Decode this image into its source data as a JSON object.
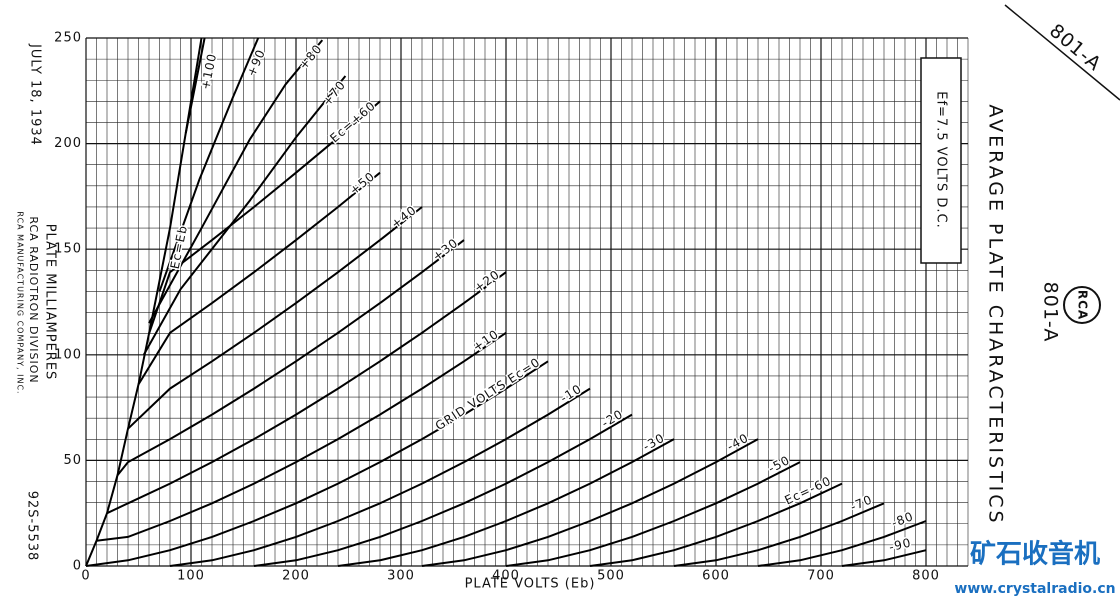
{
  "chart_data": {
    "type": "line",
    "title": "AVERAGE PLATE CHARACTERISTICS",
    "tube": "801-A",
    "corner_label": "801-A",
    "note": "Ef=7.5 VOLTS D.C.",
    "date": "JULY 18, 1934",
    "maker": "RCA RADIOTRON DIVISION",
    "company": "RCA MANUFACTURING COMPANY, INC.",
    "drawing_number": "92S-5538",
    "logo": "RCA",
    "watermark": "矿石收音机",
    "watermark_url": "www.crystalradio.cn",
    "x_label": "PLATE VOLTS (Eb)",
    "y_label": "PLATE MILLIAMPERES",
    "xlim": [
      0,
      840
    ],
    "ylim": [
      0,
      250
    ],
    "xticks": [
      0,
      100,
      200,
      300,
      400,
      500,
      600,
      700,
      800
    ],
    "yticks": [
      0,
      50,
      100,
      150,
      200,
      250
    ],
    "grid": true,
    "minor_grid": 10,
    "color": "#000000",
    "series": [
      {
        "name": "Ec=Eb",
        "x": [
          0,
          10,
          20,
          30,
          40,
          50,
          60,
          80,
          100,
          110
        ],
        "values": [
          0,
          12,
          25,
          43,
          65,
          86,
          110,
          160,
          220,
          250
        ]
      },
      {
        "name": "+100",
        "x": [
          95,
          105,
          113
        ],
        "values": [
          205,
          230,
          250
        ]
      },
      {
        "name": "+90",
        "x": [
          70,
          108,
          140,
          164
        ],
        "values": [
          130,
          183,
          222,
          250
        ]
      },
      {
        "name": "+80",
        "x": [
          60,
          109,
          156,
          190,
          225
        ],
        "values": [
          115,
          159,
          202,
          228,
          249
        ]
      },
      {
        "name": "+70",
        "x": [
          55,
          90,
          156,
          200,
          247
        ],
        "values": [
          100,
          131,
          173,
          203,
          232
        ]
      },
      {
        "name": "Ec=+60",
        "x": [
          60,
          80,
          120,
          160,
          200,
          240,
          280
        ],
        "values": [
          110,
          139.1,
          154.3,
          170,
          186.2,
          202.8,
          220
        ]
      },
      {
        "name": "+50",
        "x": [
          50,
          80,
          120,
          160,
          200,
          240,
          280
        ],
        "values": [
          86,
          110.4,
          124.5,
          139.1,
          154.3,
          170,
          186.2
        ]
      },
      {
        "name": "+40",
        "x": [
          40,
          80,
          120,
          160,
          200,
          240,
          280,
          320
        ],
        "values": [
          65,
          84,
          96.9,
          110.4,
          124.5,
          139.1,
          154.3,
          170
        ]
      },
      {
        "name": "+30",
        "x": [
          30,
          40,
          80,
          120,
          160,
          200,
          240,
          280,
          320,
          360
        ],
        "values": [
          43,
          49.2,
          60.1,
          71.7,
          84,
          96.9,
          110.4,
          124.5,
          139.1,
          154.3
        ]
      },
      {
        "name": "+20",
        "x": [
          20,
          40,
          80,
          120,
          160,
          200,
          240,
          280,
          320,
          360,
          400
        ],
        "values": [
          25,
          29.7,
          39,
          49.2,
          60.1,
          71.7,
          84,
          96.9,
          110.4,
          124.5,
          139.1
        ]
      },
      {
        "name": "+10",
        "x": [
          10,
          40,
          80,
          120,
          160,
          200,
          240,
          280,
          320,
          360,
          400
        ],
        "values": [
          12,
          13.8,
          21.3,
          29.7,
          39,
          49.2,
          60.1,
          71.7,
          84,
          96.9,
          110.4
        ]
      },
      {
        "name": "GRID VOLTS Ec=0",
        "x": [
          0,
          40,
          80,
          120,
          160,
          200,
          240,
          280,
          320,
          360,
          400,
          440
        ],
        "values": [
          0,
          2.7,
          7.5,
          13.8,
          21.3,
          29.7,
          39,
          49.2,
          60.1,
          71.7,
          84,
          96.9
        ]
      },
      {
        "name": "-10",
        "x": [
          80,
          120,
          160,
          200,
          240,
          280,
          320,
          360,
          400,
          440,
          480
        ],
        "values": [
          0,
          2.7,
          7.5,
          13.8,
          21.3,
          29.7,
          39,
          49.2,
          60.1,
          71.7,
          84
        ]
      },
      {
        "name": "-20",
        "x": [
          160,
          200,
          240,
          280,
          320,
          360,
          400,
          440,
          480,
          520
        ],
        "values": [
          0,
          2.7,
          7.5,
          13.8,
          21.3,
          29.7,
          39,
          49.2,
          60.1,
          71.7
        ]
      },
      {
        "name": "-30",
        "x": [
          240,
          280,
          320,
          360,
          400,
          440,
          480,
          520,
          560
        ],
        "values": [
          0,
          2.7,
          7.5,
          13.8,
          21.3,
          29.7,
          39,
          49.2,
          60.1
        ]
      },
      {
        "name": "-40",
        "x": [
          320,
          360,
          400,
          440,
          480,
          520,
          560,
          600,
          640
        ],
        "values": [
          0,
          2.7,
          7.5,
          13.8,
          21.3,
          29.7,
          39,
          49.2,
          60.1
        ]
      },
      {
        "name": "-50",
        "x": [
          400,
          440,
          480,
          520,
          560,
          600,
          640,
          680
        ],
        "values": [
          0,
          2.7,
          7.5,
          13.8,
          21.3,
          29.7,
          39,
          49.2
        ]
      },
      {
        "name": "Ec=-60",
        "x": [
          480,
          520,
          560,
          600,
          640,
          680,
          720
        ],
        "values": [
          0,
          2.7,
          7.5,
          13.8,
          21.3,
          29.7,
          39
        ]
      },
      {
        "name": "-70",
        "x": [
          560,
          600,
          640,
          680,
          720,
          760
        ],
        "values": [
          0,
          2.7,
          7.5,
          13.8,
          21.3,
          29.7
        ]
      },
      {
        "name": "-80",
        "x": [
          640,
          680,
          720,
          760,
          800
        ],
        "values": [
          0,
          2.7,
          7.5,
          13.8,
          21.3
        ]
      },
      {
        "name": "-90",
        "x": [
          720,
          760,
          800
        ],
        "values": [
          0,
          2.7,
          7.5
        ]
      }
    ]
  }
}
